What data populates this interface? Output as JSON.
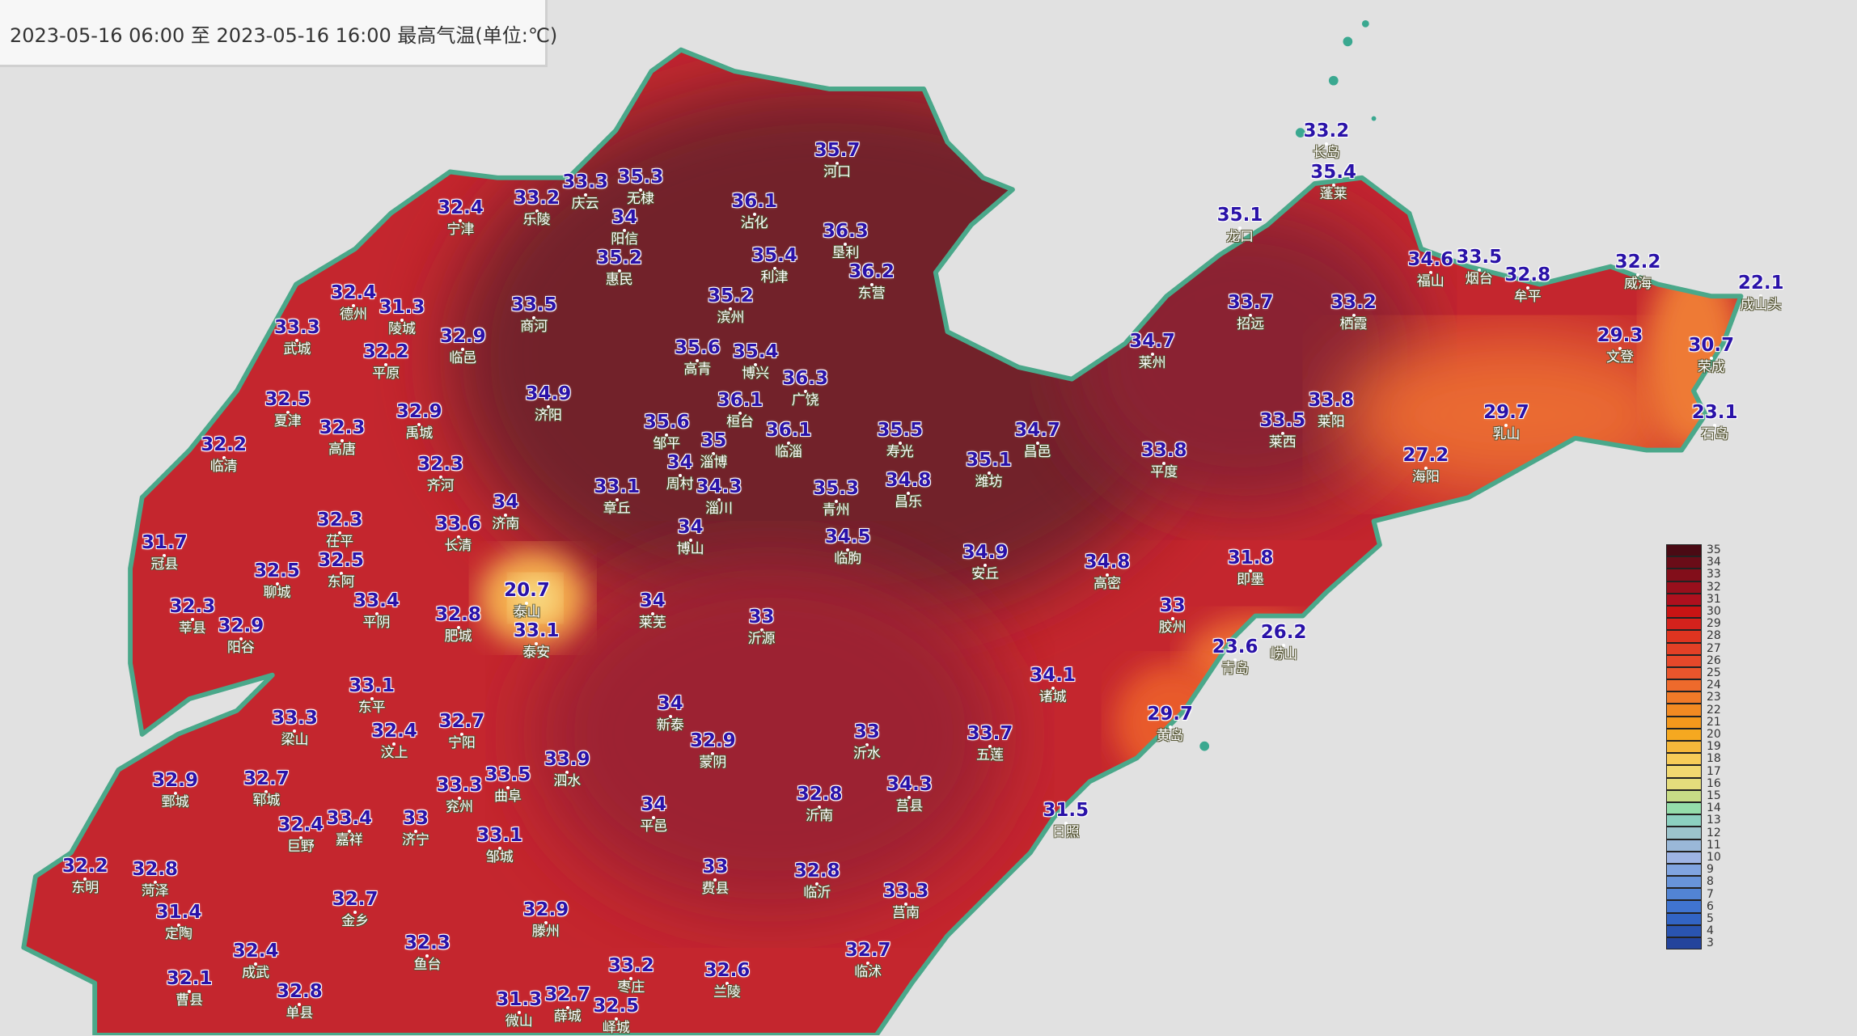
{
  "title": "2023-05-16 06:00 至 2023-05-16 16:00 最高气温(单位:℃)",
  "colors": {
    "background": "#e1e1e1",
    "border": "#4aa88a",
    "dark": "#7a2530",
    "mid": "#c4262e",
    "coast": "#ea6a30",
    "value_text": "#2a12a8"
  },
  "stations": [
    {
      "name": "宁津",
      "value": "32.4"
    },
    {
      "name": "乐陵",
      "value": "33.2"
    },
    {
      "name": "庆云",
      "value": "33.3"
    },
    {
      "name": "无棣",
      "value": "35.3"
    },
    {
      "name": "阳信",
      "value": "34"
    },
    {
      "name": "惠民",
      "value": "35.2"
    },
    {
      "name": "沾化",
      "value": "36.1"
    },
    {
      "name": "河口",
      "value": "35.7"
    },
    {
      "name": "垦利",
      "value": "36.3"
    },
    {
      "name": "利津",
      "value": "35.4"
    },
    {
      "name": "东营",
      "value": "36.2"
    },
    {
      "name": "滨州",
      "value": "35.2"
    },
    {
      "name": "高青",
      "value": "35.6"
    },
    {
      "name": "博兴",
      "value": "35.4"
    },
    {
      "name": "广饶",
      "value": "36.3"
    },
    {
      "name": "桓台",
      "value": "36.1"
    },
    {
      "name": "临淄",
      "value": "36.1"
    },
    {
      "name": "商河",
      "value": "33.5"
    },
    {
      "name": "济阳",
      "value": "34.9"
    },
    {
      "name": "德州",
      "value": "32.4"
    },
    {
      "name": "陵城",
      "value": "31.3"
    },
    {
      "name": "武城",
      "value": "33.3"
    },
    {
      "name": "平原",
      "value": "32.2"
    },
    {
      "name": "临邑",
      "value": "32.9"
    },
    {
      "name": "夏津",
      "value": "32.5"
    },
    {
      "name": "高唐",
      "value": "32.3"
    },
    {
      "name": "禹城",
      "value": "32.9"
    },
    {
      "name": "齐河",
      "value": "32.3"
    },
    {
      "name": "临清",
      "value": "32.2"
    },
    {
      "name": "章丘",
      "value": "33.1"
    },
    {
      "name": "济南",
      "value": "34"
    },
    {
      "name": "长清",
      "value": "33.6"
    },
    {
      "name": "邹平",
      "value": "35.6"
    },
    {
      "name": "淄博",
      "value": "35"
    },
    {
      "name": "周村",
      "value": "34"
    },
    {
      "name": "淄川",
      "value": "34.3"
    },
    {
      "name": "博山",
      "value": "34"
    },
    {
      "name": "青州",
      "value": "35.3"
    },
    {
      "name": "临朐",
      "value": "34.5"
    },
    {
      "name": "寿光",
      "value": "35.5"
    },
    {
      "name": "昌乐",
      "value": "34.8"
    },
    {
      "name": "潍坊",
      "value": "35.1"
    },
    {
      "name": "昌邑",
      "value": "34.7"
    },
    {
      "name": "安丘",
      "value": "34.9"
    },
    {
      "name": "高密",
      "value": "34.8"
    },
    {
      "name": "胶州",
      "value": "33"
    },
    {
      "name": "即墨",
      "value": "31.8"
    },
    {
      "name": "青岛",
      "value": "23.6"
    },
    {
      "name": "崂山",
      "value": "26.2"
    },
    {
      "name": "平度",
      "value": "33.8"
    },
    {
      "name": "莱州",
      "value": "34.7"
    },
    {
      "name": "招远",
      "value": "33.7"
    },
    {
      "name": "栖霞",
      "value": "33.2"
    },
    {
      "name": "福山",
      "value": "34.6"
    },
    {
      "name": "烟台",
      "value": "33.5"
    },
    {
      "name": "牟平",
      "value": "32.8"
    },
    {
      "name": "威海",
      "value": "32.2"
    },
    {
      "name": "成山头",
      "value": "22.1"
    },
    {
      "name": "文登",
      "value": "29.3"
    },
    {
      "name": "荣成",
      "value": "30.7"
    },
    {
      "name": "石岛",
      "value": "23.1"
    },
    {
      "name": "乳山",
      "value": "29.7"
    },
    {
      "name": "海阳",
      "value": "27.2"
    },
    {
      "name": "莱阳",
      "value": "33.8"
    },
    {
      "name": "莱西",
      "value": "33.5"
    },
    {
      "name": "龙口",
      "value": "35.1"
    },
    {
      "name": "蓬莱",
      "value": "35.4"
    },
    {
      "name": "长岛",
      "value": "33.2"
    },
    {
      "name": "冠县",
      "value": "31.7"
    },
    {
      "name": "聊城",
      "value": "32.5"
    },
    {
      "name": "茌平",
      "value": "32.3"
    },
    {
      "name": "东阿",
      "value": "32.5"
    },
    {
      "name": "平阴",
      "value": "33.4"
    },
    {
      "name": "莘县",
      "value": "32.3"
    },
    {
      "name": "阳谷",
      "value": "32.9"
    },
    {
      "name": "肥城",
      "value": "32.8"
    },
    {
      "name": "泰山",
      "value": "20.7"
    },
    {
      "name": "泰安",
      "value": "33.1"
    },
    {
      "name": "东平",
      "value": "33.1"
    },
    {
      "name": "梁山",
      "value": "33.3"
    },
    {
      "name": "汶上",
      "value": "32.4"
    },
    {
      "name": "宁阳",
      "value": "32.7"
    },
    {
      "name": "兖州",
      "value": "33.3"
    },
    {
      "name": "曲阜",
      "value": "33.5"
    },
    {
      "name": "泗水",
      "value": "33.9"
    },
    {
      "name": "邹城",
      "value": "33.1"
    },
    {
      "name": "济宁",
      "value": "33"
    },
    {
      "name": "嘉祥",
      "value": "33.4"
    },
    {
      "name": "巨野",
      "value": "32.4"
    },
    {
      "name": "郓城",
      "value": "32.7"
    },
    {
      "name": "鄄城",
      "value": "32.9"
    },
    {
      "name": "东明",
      "value": "32.2"
    },
    {
      "name": "菏泽",
      "value": "32.8"
    },
    {
      "name": "定陶",
      "value": "31.4"
    },
    {
      "name": "成武",
      "value": "32.4"
    },
    {
      "name": "曹县",
      "value": "32.1"
    },
    {
      "name": "单县",
      "value": "32.8"
    },
    {
      "name": "金乡",
      "value": "32.7"
    },
    {
      "name": "鱼台",
      "value": "32.3"
    },
    {
      "name": "滕州",
      "value": "32.9"
    },
    {
      "name": "微山",
      "value": "31.3"
    },
    {
      "name": "薛城",
      "value": "32.7"
    },
    {
      "name": "峄城",
      "value": "32.5"
    },
    {
      "name": "枣庄",
      "value": "33.2"
    },
    {
      "name": "兰陵",
      "value": "32.6"
    },
    {
      "name": "临沭",
      "value": "32.7"
    },
    {
      "name": "莒南",
      "value": "33.3"
    },
    {
      "name": "临沂",
      "value": "32.8"
    },
    {
      "name": "沂南",
      "value": "32.8"
    },
    {
      "name": "费县",
      "value": "33"
    },
    {
      "name": "平邑",
      "value": "34"
    },
    {
      "name": "蒙阴",
      "value": "32.9"
    },
    {
      "name": "新泰",
      "value": "34"
    },
    {
      "name": "莱芜",
      "value": "34"
    },
    {
      "name": "沂源",
      "value": "33"
    },
    {
      "name": "沂水",
      "value": "33"
    },
    {
      "name": "莒县",
      "value": "34.3"
    },
    {
      "name": "五莲",
      "value": "33.7"
    },
    {
      "name": "诸城",
      "value": "34.1"
    },
    {
      "name": "日照",
      "value": "31.5"
    },
    {
      "name": "黄岛",
      "value": "29.7"
    }
  ],
  "legend": {
    "labels": [
      "35",
      "34",
      "33",
      "32",
      "31",
      "30",
      "29",
      "28",
      "27",
      "26",
      "25",
      "24",
      "23",
      "22",
      "21",
      "20",
      "19",
      "18",
      "17",
      "16",
      "15",
      "14",
      "13",
      "12",
      "11",
      "10",
      "9",
      "8",
      "7",
      "6",
      "5",
      "4",
      "3"
    ],
    "colors": [
      "#4a0a14",
      "#6a0c18",
      "#820e1a",
      "#980f1c",
      "#ae101e",
      "#c81414",
      "#d4221c",
      "#de3420",
      "#e24026",
      "#e6482a",
      "#ea552c",
      "#ee6a2c",
      "#f07a28",
      "#f28a22",
      "#f3981c",
      "#f5a820",
      "#f6b83a",
      "#f7cc58",
      "#f1d870",
      "#e4dc7c",
      "#c8dc86",
      "#94dcaa",
      "#8cd0c0",
      "#9cc4cc",
      "#9ab8d8",
      "#9eb4e4",
      "#80a4e0",
      "#6894da",
      "#5284d4",
      "#4074d0",
      "#3264c4",
      "#2a54b0",
      "#24449c"
    ]
  }
}
